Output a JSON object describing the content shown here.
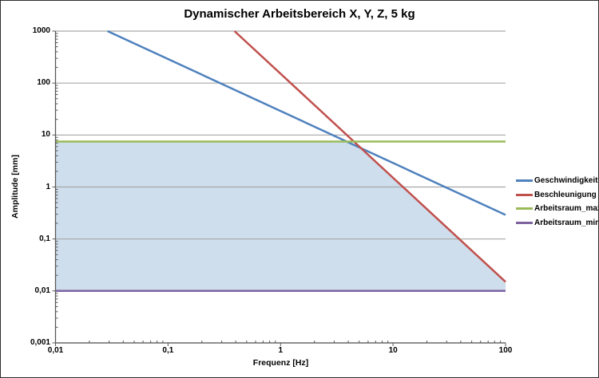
{
  "figure": {
    "background": "#ffffff",
    "border_color": "#2e2e2e"
  },
  "chart_data": {
    "type": "line",
    "title": "Dynamischer Arbeitsbereich X, Y, Z, 5 kg",
    "xlabel": "Frequenz [Hz]",
    "ylabel": "Amplitude [mm]",
    "x_scale": "log",
    "y_scale": "log",
    "xlim": [
      0.01,
      100
    ],
    "ylim": [
      0.001,
      1000
    ],
    "grid": "horizontal-major-only",
    "grid_color": "#a6a6a6",
    "axis_color": "#595959",
    "legend_position": "right",
    "x_ticks": [
      {
        "value": 0.01,
        "label": "0,01"
      },
      {
        "value": 0.1,
        "label": "0,1"
      },
      {
        "value": 1,
        "label": "1"
      },
      {
        "value": 10,
        "label": "10"
      },
      {
        "value": 100,
        "label": "100"
      }
    ],
    "y_ticks": [
      {
        "value": 1000,
        "label": "1000"
      },
      {
        "value": 100,
        "label": "100"
      },
      {
        "value": 10,
        "label": "10"
      },
      {
        "value": 1,
        "label": "1"
      },
      {
        "value": 0.1,
        "label": "0,1"
      },
      {
        "value": 0.01,
        "label": "0,01"
      },
      {
        "value": 0.001,
        "label": "0,001"
      }
    ],
    "series": [
      {
        "name": "Geschwindigkeit",
        "color": "#4F81BD",
        "points": [
          [
            0.029,
            1000
          ],
          [
            100,
            0.29
          ]
        ]
      },
      {
        "name": "Beschleunigung",
        "color": "#C0504D",
        "points": [
          [
            0.39,
            1000
          ],
          [
            100,
            0.015
          ]
        ]
      },
      {
        "name": "Arbeitsraum_max",
        "color": "#9BBB59",
        "points": [
          [
            0.01,
            7.5
          ],
          [
            100,
            7.5
          ]
        ]
      },
      {
        "name": "Arbeitsraum_min",
        "color": "#7E62A1",
        "points": [
          [
            0.01,
            0.01
          ],
          [
            100,
            0.01
          ]
        ]
      }
    ],
    "shaded_region": {
      "color": "#CEDEEC",
      "points": [
        [
          0.01,
          0.01
        ],
        [
          0.01,
          7.5
        ],
        [
          3.87,
          7.5
        ],
        [
          5.17,
          5.6
        ],
        [
          100,
          0.015
        ],
        [
          100,
          0.01
        ]
      ]
    }
  }
}
